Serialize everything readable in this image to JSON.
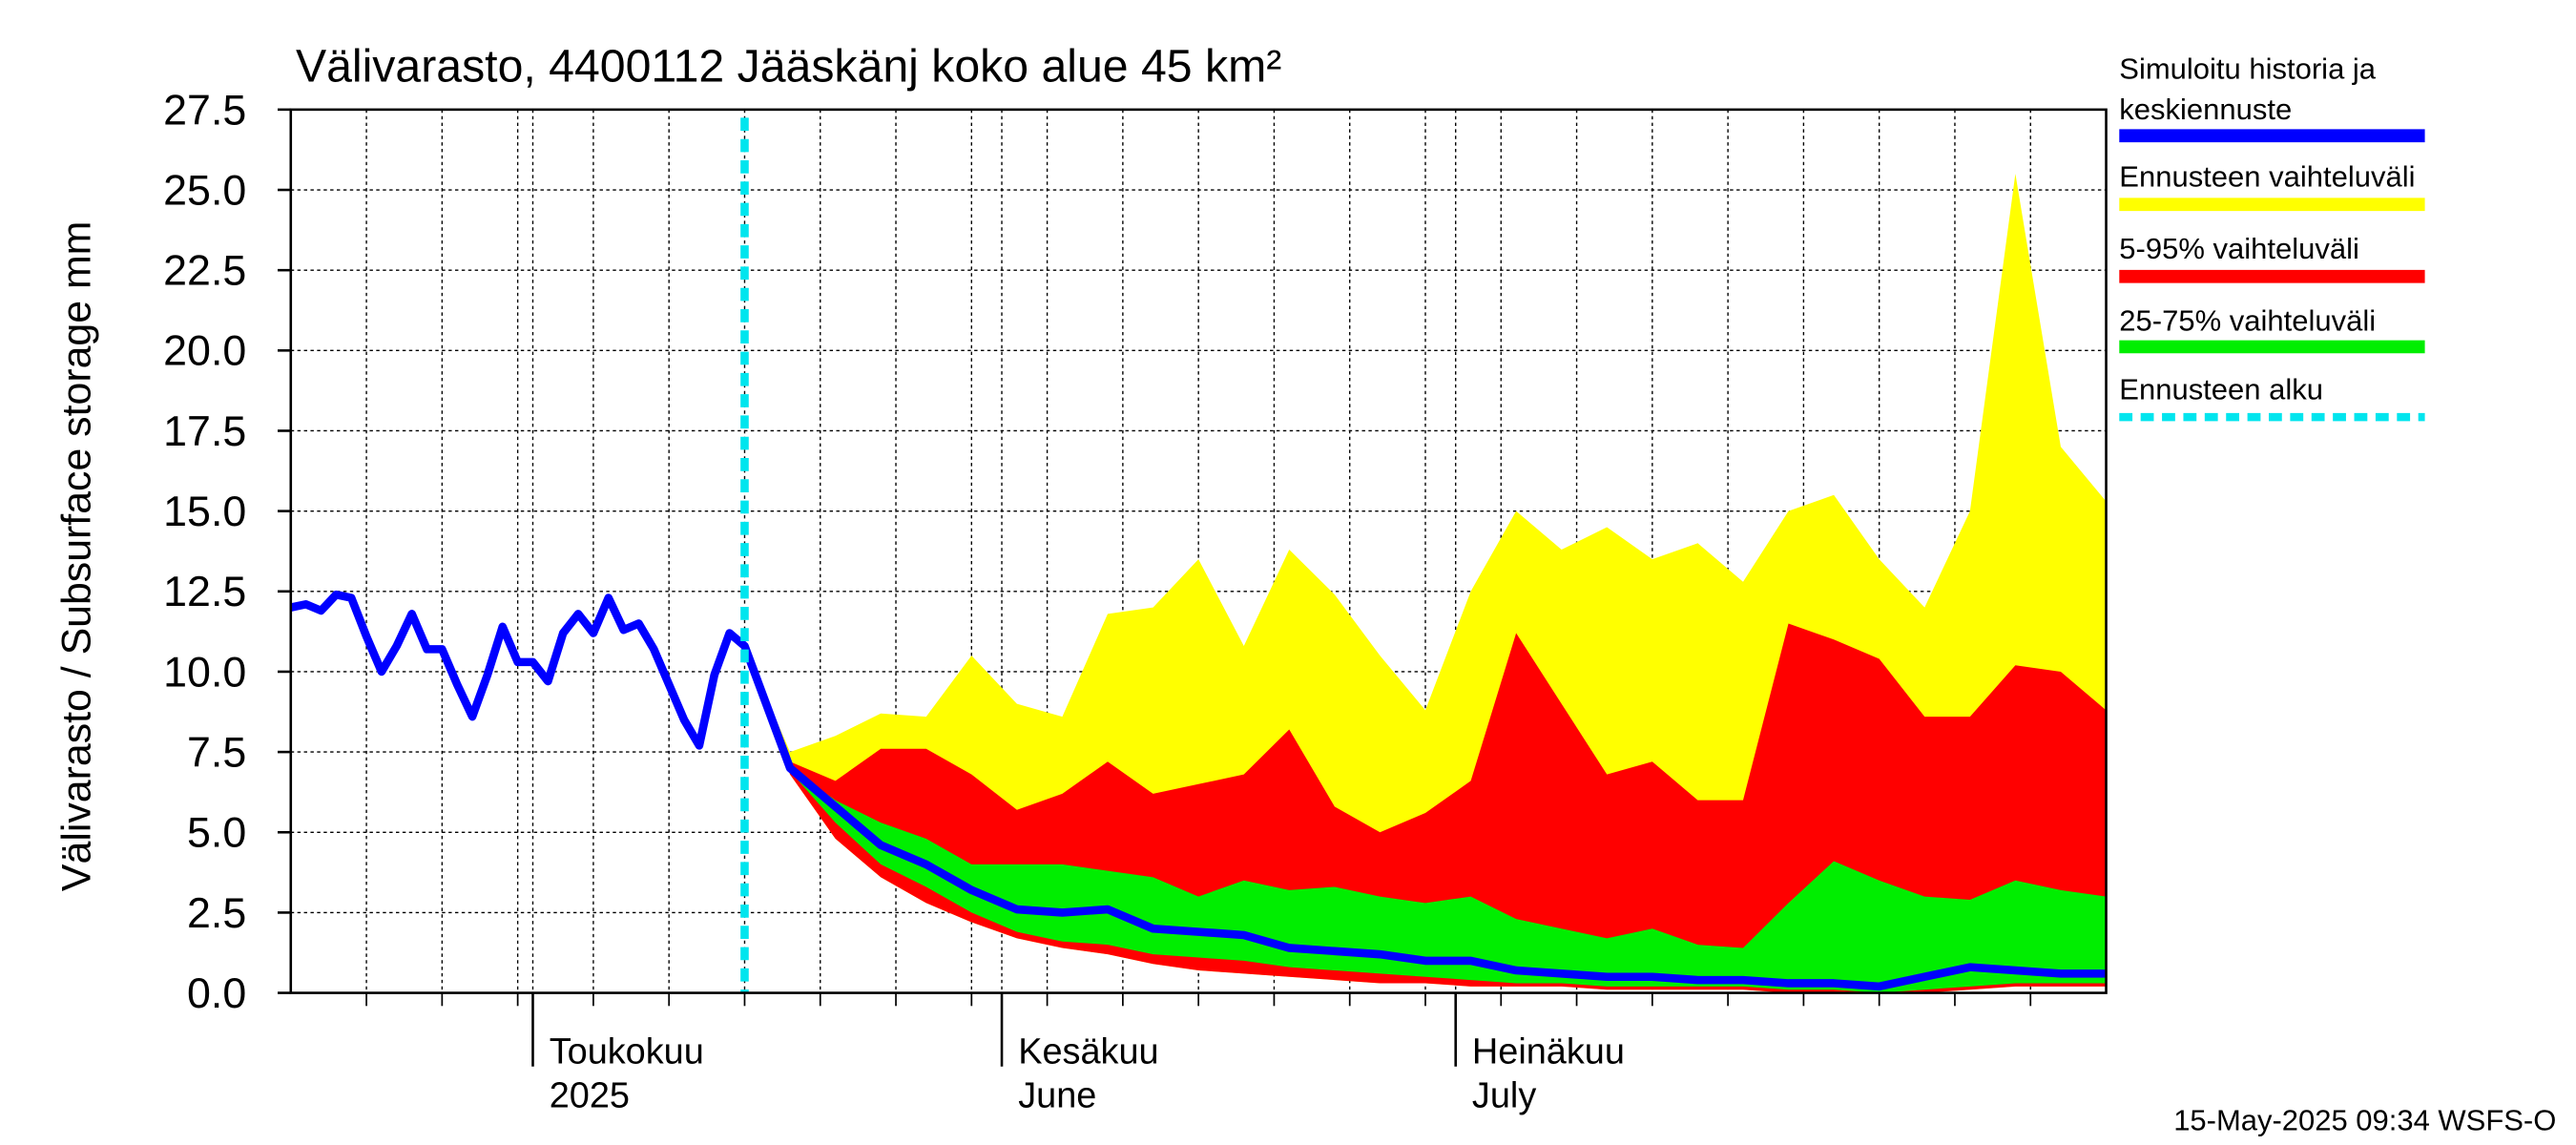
{
  "chart_data": {
    "type": "band-forecast",
    "title": "Välivarasto, 4400112 Jääskänj koko alue 45 km²",
    "ylabel": "Välivarasto / Subsurface storage  mm",
    "footer": "15-May-2025 09:34 WSFS-O",
    "xlim": [
      0,
      120
    ],
    "xticks": [
      {
        "value": 16,
        "label": "Toukokuu",
        "label2": "2025"
      },
      {
        "value": 47,
        "label": "Kesäkuu",
        "label2": "June"
      },
      {
        "value": 77,
        "label": "Heinäkuu",
        "label2": "July"
      }
    ],
    "xgrid": [
      5,
      10,
      15,
      20,
      25,
      30,
      35,
      40,
      45,
      50,
      55,
      60,
      65,
      70,
      75,
      80,
      85,
      90,
      95,
      100,
      105,
      110,
      115
    ],
    "ylim": [
      0,
      27.5
    ],
    "yticks": [
      {
        "value": 0,
        "label": "0.0"
      },
      2.5,
      {
        "value": 5,
        "label": "5.0"
      },
      7.5,
      {
        "value": 10,
        "label": "10.0"
      },
      12.5,
      {
        "value": 15,
        "label": "15.0"
      },
      17.5,
      {
        "value": 20,
        "label": "20.0"
      },
      22.5,
      {
        "value": 25,
        "label": "25.0"
      },
      27.5
    ],
    "grid": true,
    "forecast_start": 30,
    "forecast_name": "Ennusteen alku",
    "forecast_color": "#00e5ee",
    "x": [
      30,
      33,
      36,
      39,
      42,
      45,
      48,
      51,
      54,
      57,
      60,
      63,
      66,
      69,
      72,
      75,
      78,
      81,
      84,
      87,
      90,
      93,
      96,
      99,
      102,
      105,
      108,
      111,
      114,
      117,
      120
    ],
    "series": [
      {
        "name": "Ennusteen vaihteluväli",
        "color": "#ffff00",
        "high": [
          10.8,
          7.5,
          8.0,
          8.7,
          8.6,
          10.5,
          9.0,
          8.6,
          11.8,
          12.0,
          13.5,
          10.8,
          13.8,
          12.4,
          10.5,
          8.8,
          12.5,
          15.0,
          13.8,
          14.5,
          13.5,
          14.0,
          12.8,
          15.0,
          15.5,
          13.5,
          12.0,
          15.0,
          25.5,
          17.0,
          15.3
        ],
        "low": [
          10.8,
          6.8,
          4.8,
          3.6,
          2.8,
          2.2,
          1.7,
          1.4,
          1.2,
          0.9,
          0.7,
          0.6,
          0.5,
          0.4,
          0.3,
          0.3,
          0.2,
          0.2,
          0.2,
          0.1,
          0.1,
          0.1,
          0.1,
          0.0,
          0.0,
          0.0,
          0.0,
          0.1,
          0.2,
          0.2,
          0.2
        ]
      },
      {
        "name": "5-95% vaihteluväli",
        "color": "#ff0000",
        "high": [
          10.8,
          7.2,
          6.6,
          7.6,
          7.6,
          6.8,
          5.7,
          6.2,
          7.2,
          6.2,
          6.5,
          6.8,
          8.2,
          5.8,
          5.0,
          5.6,
          6.6,
          11.2,
          9.0,
          6.8,
          7.2,
          6.0,
          6.0,
          11.5,
          11.0,
          10.4,
          8.6,
          8.6,
          10.2,
          10.0,
          8.8
        ],
        "low": [
          10.8,
          6.8,
          4.8,
          3.6,
          2.8,
          2.2,
          1.7,
          1.4,
          1.2,
          0.9,
          0.7,
          0.6,
          0.5,
          0.4,
          0.3,
          0.3,
          0.2,
          0.2,
          0.2,
          0.1,
          0.1,
          0.1,
          0.1,
          0.0,
          0.0,
          0.0,
          0.0,
          0.1,
          0.2,
          0.2,
          0.2
        ]
      },
      {
        "name": "25-75% vaihteluväli",
        "color": "#00ee00",
        "high": [
          10.8,
          7.0,
          6.0,
          5.3,
          4.8,
          4.0,
          4.0,
          4.0,
          3.8,
          3.6,
          3.0,
          3.5,
          3.2,
          3.3,
          3.0,
          2.8,
          3.0,
          2.3,
          2.0,
          1.7,
          2.0,
          1.5,
          1.4,
          2.8,
          4.1,
          3.5,
          3.0,
          2.9,
          3.5,
          3.2,
          3.0
        ],
        "low": [
          10.8,
          6.9,
          5.3,
          4.0,
          3.3,
          2.5,
          1.9,
          1.6,
          1.5,
          1.2,
          1.1,
          1.0,
          0.8,
          0.7,
          0.6,
          0.5,
          0.4,
          0.3,
          0.3,
          0.2,
          0.2,
          0.2,
          0.2,
          0.1,
          0.1,
          0.0,
          0.1,
          0.2,
          0.3,
          0.3,
          0.3
        ]
      },
      {
        "name": "Simuloitu historia ja keskiennuste",
        "color": "#0000ff",
        "x": [
          0,
          1,
          2,
          3,
          4,
          5,
          6,
          7,
          8,
          9,
          10,
          11,
          12,
          13,
          14,
          15,
          16,
          17,
          18,
          19,
          20,
          21,
          22,
          23,
          24,
          25,
          26,
          27,
          28,
          29,
          30,
          33,
          36,
          39,
          42,
          45,
          48,
          51,
          54,
          57,
          60,
          63,
          66,
          69,
          72,
          75,
          78,
          81,
          84,
          87,
          90,
          93,
          96,
          99,
          102,
          105,
          108,
          111,
          114,
          117,
          120
        ],
        "values": [
          12.0,
          12.1,
          11.9,
          12.4,
          12.3,
          11.1,
          10.0,
          10.8,
          11.8,
          10.7,
          10.7,
          9.6,
          8.6,
          9.9,
          11.4,
          10.3,
          10.3,
          9.7,
          11.2,
          11.8,
          11.2,
          12.3,
          11.3,
          11.5,
          10.7,
          9.6,
          8.5,
          7.7,
          9.9,
          11.2,
          10.8,
          7.0,
          5.8,
          4.6,
          4.0,
          3.2,
          2.6,
          2.5,
          2.6,
          2.0,
          1.9,
          1.8,
          1.4,
          1.3,
          1.2,
          1.0,
          1.0,
          0.7,
          0.6,
          0.5,
          0.5,
          0.4,
          0.4,
          0.3,
          0.3,
          0.2,
          0.5,
          0.8,
          0.7,
          0.6,
          0.6
        ]
      }
    ]
  }
}
